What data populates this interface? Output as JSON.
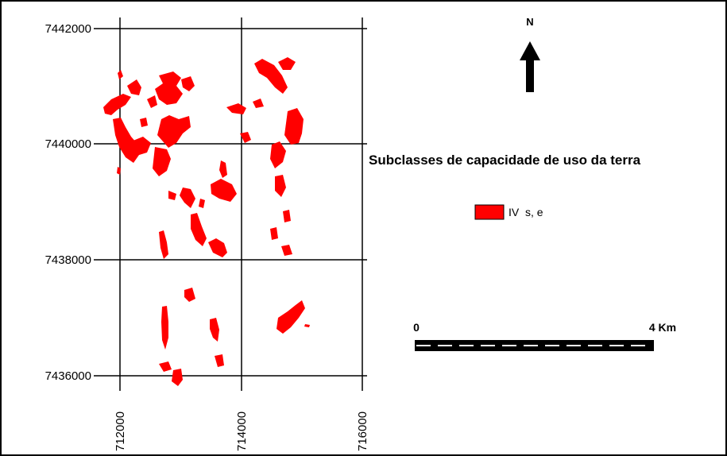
{
  "map": {
    "legend_title": "Subclasses de capacidade de uso da terra",
    "legend_items": [
      {
        "label": "IV  s, e",
        "color": "#ff0000"
      }
    ],
    "north_label": "N",
    "scale_bar": {
      "start_label": "0",
      "end_label": "4 Km"
    },
    "colors": {
      "patch": "#ff0000",
      "grid": "#000000",
      "background": "#ffffff"
    }
  },
  "chart_data": {
    "type": "map",
    "y_ticks": [
      "7442000",
      "7440000",
      "7438000",
      "7436000"
    ],
    "x_ticks": [
      "712000",
      "714000",
      "716000"
    ],
    "grid": true,
    "legend_placement": "right"
  }
}
